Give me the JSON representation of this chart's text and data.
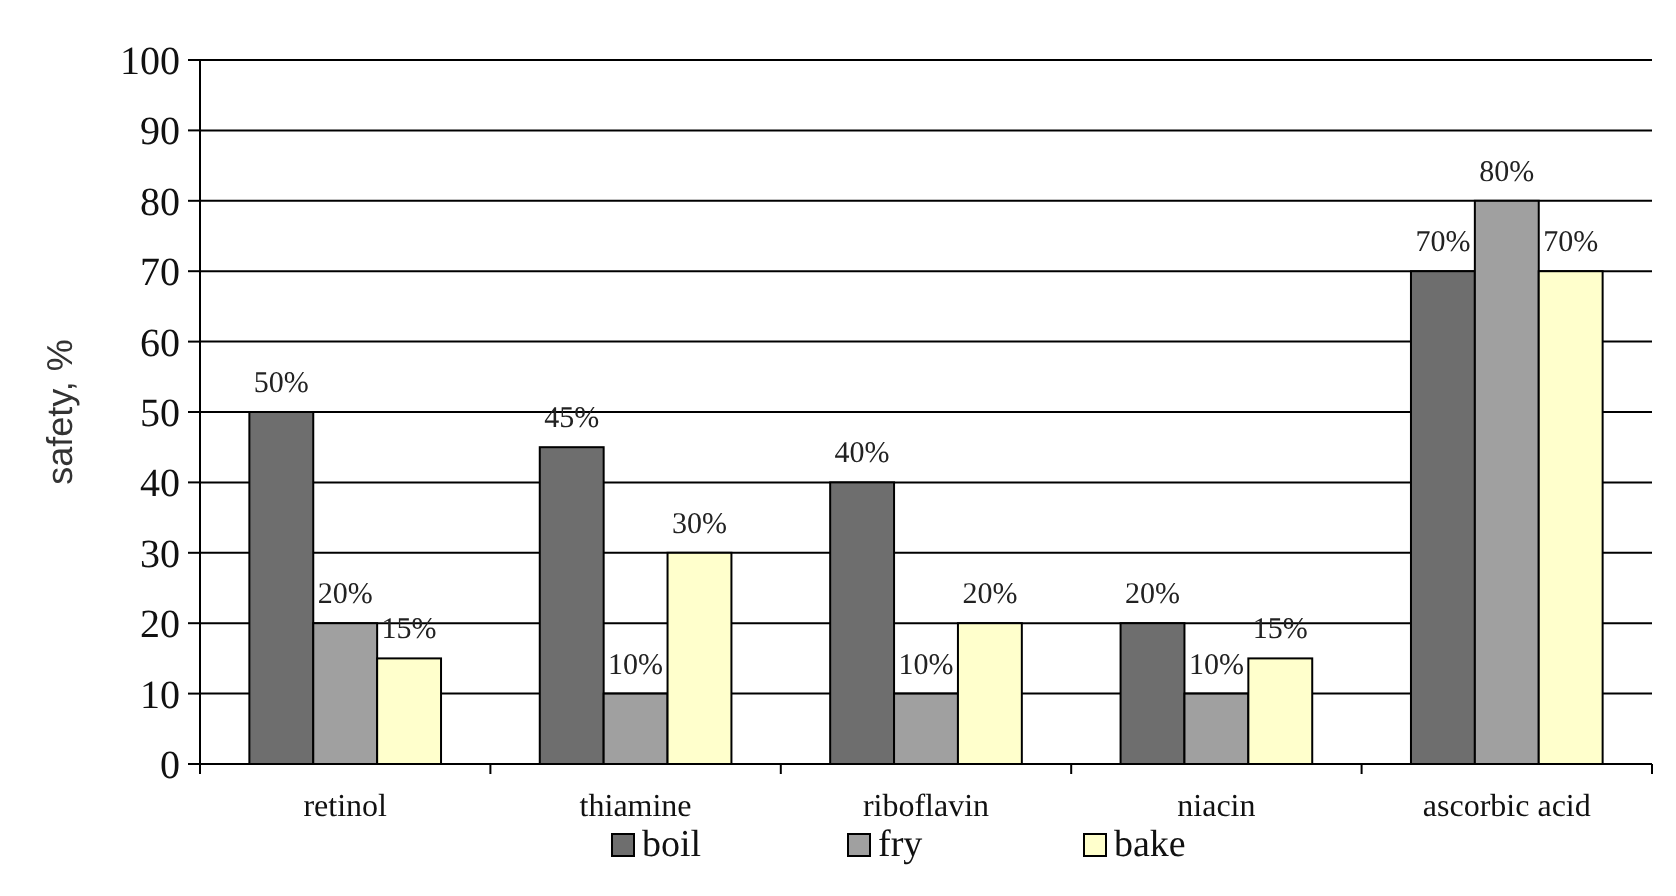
{
  "chart_data": {
    "type": "bar",
    "ylabel": "safety, %",
    "categories": [
      "retinol",
      "thiamine",
      "riboflavin",
      "niacin",
      "ascorbic acid"
    ],
    "series": [
      {
        "name": "boil",
        "color": "#6e6e6e",
        "values": [
          50,
          45,
          40,
          20,
          70
        ],
        "value_labels": [
          "50%",
          "45%",
          "40%",
          "20%",
          "70%"
        ]
      },
      {
        "name": "fry",
        "color": "#a0a0a0",
        "values": [
          20,
          10,
          10,
          10,
          80
        ],
        "value_labels": [
          "20%",
          "10%",
          "10%",
          "10%",
          "80%"
        ]
      },
      {
        "name": "bake",
        "color": "#ffffcc",
        "values": [
          15,
          30,
          20,
          15,
          70
        ],
        "value_labels": [
          "15%",
          "30%",
          "20%",
          "15%",
          "70%"
        ]
      }
    ],
    "ylim": [
      0,
      100
    ],
    "yticks": [
      0,
      10,
      20,
      30,
      40,
      50,
      60,
      70,
      80,
      90,
      100
    ],
    "grid": "y",
    "legend": "bottom"
  }
}
